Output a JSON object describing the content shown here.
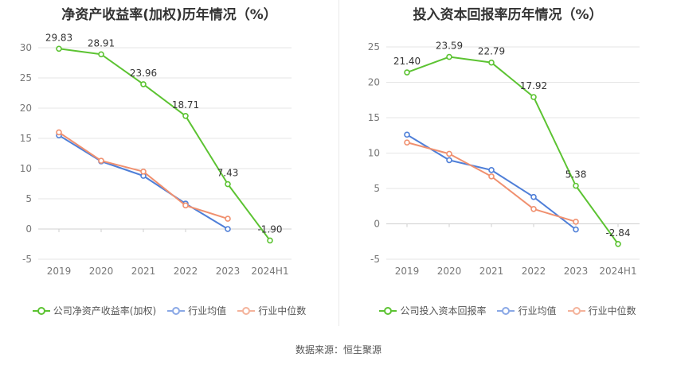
{
  "source_text": "数据来源：恒生聚源",
  "colors": {
    "green": "#5cc332",
    "blue": "#4f7fd8",
    "orange": "#f0906f",
    "grid": "#e6e6e6",
    "axis": "#cfcfcf",
    "tick": "#777777"
  },
  "chart_data": [
    {
      "type": "line",
      "title": "净资产收益率(加权)历年情况（%）",
      "categories": [
        "2019",
        "2020",
        "2021",
        "2022",
        "2023",
        "2024H1"
      ],
      "ylim": [
        -5,
        30
      ],
      "yticks": [
        -5,
        0,
        5,
        10,
        15,
        20,
        25,
        30
      ],
      "grid": true,
      "legend_position": "bottom",
      "series": [
        {
          "name": "公司净资产收益率(加权)",
          "color": "#5cc332",
          "values": [
            29.83,
            28.91,
            23.96,
            18.71,
            7.43,
            -1.9
          ],
          "labels": [
            "29.83",
            "28.91",
            "23.96",
            "18.71",
            "7.43",
            "-1.90"
          ]
        },
        {
          "name": "行业均值",
          "color": "#4f7fd8",
          "values": [
            15.5,
            11.2,
            8.8,
            4.2,
            0.0,
            null
          ]
        },
        {
          "name": "行业中位数",
          "color": "#f0906f",
          "values": [
            16.0,
            11.3,
            9.5,
            3.9,
            1.7,
            null
          ]
        }
      ]
    },
    {
      "type": "line",
      "title": "投入资本回报率历年情况（%）",
      "categories": [
        "2019",
        "2020",
        "2021",
        "2022",
        "2023",
        "2024H1"
      ],
      "ylim": [
        -5,
        25
      ],
      "yticks": [
        -5,
        0,
        5,
        10,
        15,
        20,
        25
      ],
      "grid": true,
      "legend_position": "bottom",
      "series": [
        {
          "name": "公司投入资本回报率",
          "color": "#5cc332",
          "values": [
            21.4,
            23.59,
            22.79,
            17.92,
            5.38,
            -2.84
          ],
          "labels": [
            "21.40",
            "23.59",
            "22.79",
            "17.92",
            "5.38",
            "-2.84"
          ]
        },
        {
          "name": "行业均值",
          "color": "#4f7fd8",
          "values": [
            12.6,
            9.0,
            7.6,
            3.8,
            -0.8,
            null
          ]
        },
        {
          "name": "行业中位数",
          "color": "#f0906f",
          "values": [
            11.5,
            9.9,
            6.7,
            2.1,
            0.3,
            null
          ]
        }
      ]
    }
  ]
}
